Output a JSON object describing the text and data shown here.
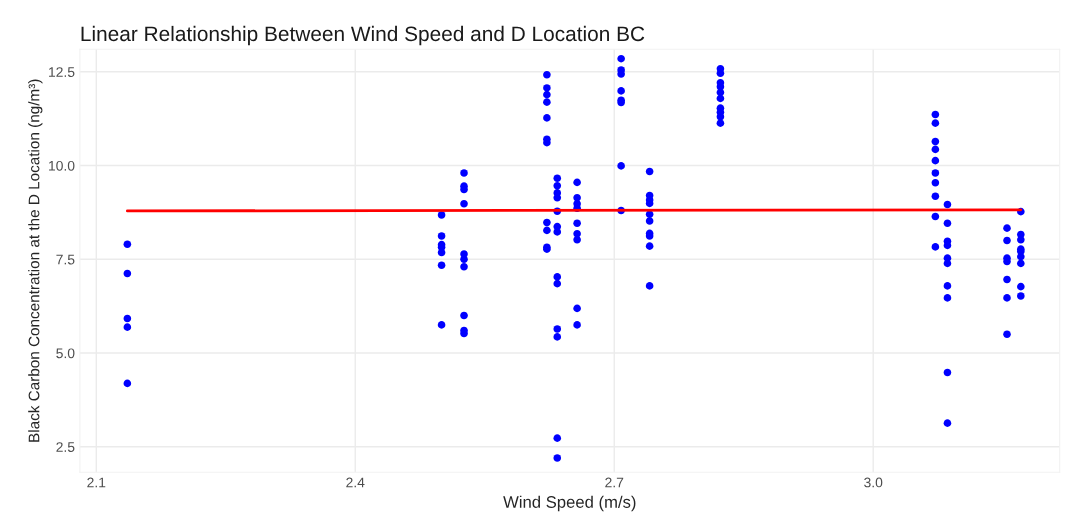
{
  "chart_data": {
    "type": "scatter",
    "title": "Linear Relationship Between Wind Speed and D Location BC",
    "xlabel": "Wind Speed (m/s)",
    "ylabel": "Black Carbon Concentration at the D Location (ng/m³)",
    "xlim": [
      2.081,
      3.216
    ],
    "ylim": [
      1.82,
      13.1
    ],
    "xticks": [
      2.1,
      2.4,
      2.7,
      {
        "value": 3.0,
        "label": "3.0"
      }
    ],
    "yticks": [
      {
        "value": 2.5,
        "label": "2.5"
      },
      {
        "value": 5.0,
        "label": "5.0"
      },
      {
        "value": 7.5,
        "label": "7.5"
      },
      {
        "value": 10.0,
        "label": "10.0"
      },
      {
        "value": 12.5,
        "label": "12.5"
      }
    ],
    "grid": true,
    "marker": "circle",
    "legend": false,
    "series": [
      {
        "color": "#0000ff",
        "x": [
          2.136,
          2.136,
          2.136,
          2.136,
          2.136,
          2.5,
          2.5,
          2.5,
          2.5,
          2.5,
          2.5,
          2.5,
          2.526,
          2.526,
          2.526,
          2.526,
          2.526,
          2.526,
          2.526,
          2.526,
          2.526,
          2.526,
          2.622,
          2.622,
          2.622,
          2.622,
          2.622,
          2.622,
          2.622,
          2.622,
          2.622,
          2.622,
          2.622,
          2.634,
          2.634,
          2.634,
          2.634,
          2.634,
          2.634,
          2.634,
          2.634,
          2.634,
          2.634,
          2.634,
          2.634,
          2.634,
          2.657,
          2.657,
          2.657,
          2.657,
          2.657,
          2.657,
          2.657,
          2.657,
          2.657,
          2.708,
          2.708,
          2.708,
          2.708,
          2.708,
          2.708,
          2.708,
          2.708,
          2.741,
          2.741,
          2.741,
          2.741,
          2.741,
          2.741,
          2.741,
          2.741,
          2.741,
          2.741,
          2.823,
          2.823,
          2.823,
          2.823,
          2.823,
          2.823,
          2.823,
          2.823,
          2.823,
          2.823,
          3.072,
          3.072,
          3.072,
          3.072,
          3.072,
          3.072,
          3.072,
          3.072,
          3.072,
          3.072,
          3.086,
          3.086,
          3.086,
          3.086,
          3.086,
          3.086,
          3.086,
          3.086,
          3.086,
          3.086,
          3.155,
          3.155,
          3.155,
          3.155,
          3.155,
          3.155,
          3.155,
          3.171,
          3.171,
          3.171,
          3.171,
          3.171,
          3.171,
          3.171,
          3.171,
          3.171
        ],
        "values": [
          7.9,
          7.12,
          5.92,
          5.69,
          4.19,
          8.68,
          8.12,
          7.89,
          7.82,
          7.68,
          7.34,
          5.75,
          9.8,
          9.45,
          9.36,
          8.98,
          7.64,
          7.5,
          7.3,
          6.0,
          5.6,
          5.52,
          12.42,
          12.07,
          11.89,
          11.69,
          11.27,
          10.7,
          10.61,
          8.48,
          8.27,
          7.82,
          7.77,
          9.66,
          9.46,
          9.27,
          9.14,
          8.78,
          8.37,
          8.23,
          7.03,
          6.85,
          5.64,
          5.43,
          2.73,
          2.2,
          9.55,
          9.14,
          8.98,
          8.86,
          8.46,
          8.18,
          8.02,
          6.19,
          5.75,
          12.85,
          12.55,
          12.44,
          11.99,
          11.74,
          11.68,
          9.99,
          8.8,
          9.84,
          9.2,
          9.08,
          8.99,
          8.7,
          8.52,
          8.19,
          8.12,
          7.85,
          6.79,
          12.58,
          12.46,
          12.21,
          12.1,
          11.95,
          11.79,
          11.53,
          11.42,
          11.3,
          11.13,
          11.36,
          11.13,
          10.64,
          10.43,
          10.13,
          9.8,
          9.54,
          9.18,
          8.64,
          7.83,
          8.96,
          8.46,
          7.98,
          7.87,
          7.53,
          7.39,
          6.79,
          6.47,
          4.48,
          3.13,
          8.33,
          8.0,
          7.53,
          7.44,
          6.96,
          6.47,
          5.5,
          8.77,
          8.16,
          8.02,
          7.77,
          7.71,
          7.57,
          7.39,
          6.77,
          6.52
        ]
      },
      {
        "type": "line",
        "color": "#ff0000",
        "x": [
          2.136,
          3.171
        ],
        "values": [
          8.79,
          8.82
        ],
        "marker": "none",
        "line_style": "solid"
      }
    ]
  }
}
